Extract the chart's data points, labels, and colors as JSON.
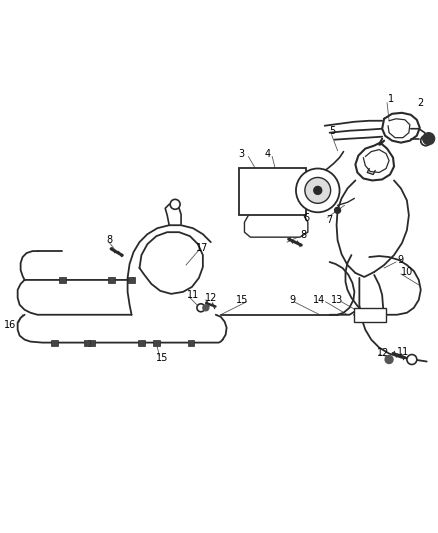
{
  "background_color": "#ffffff",
  "line_color": "#2a2a2a",
  "label_color": "#000000",
  "fig_width": 4.38,
  "fig_height": 5.33,
  "dpi": 100
}
